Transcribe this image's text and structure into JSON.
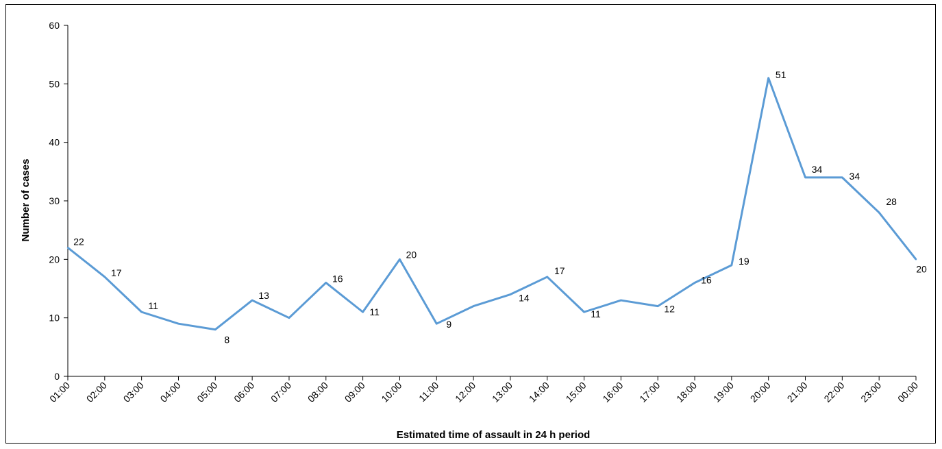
{
  "chart_data": {
    "type": "line",
    "title": "",
    "xlabel": "Estimated time of assault in 24 h period",
    "ylabel": "Number of cases",
    "ylim": [
      0,
      60
    ],
    "yticks": [
      0,
      10,
      20,
      30,
      40,
      50,
      60
    ],
    "grid": false,
    "legend": "none",
    "categories": [
      "01:00",
      "02:00",
      "03:00",
      "04:00",
      "05:00",
      "06:00",
      "07:00",
      "08:00",
      "09:00",
      "10:00",
      "11:00",
      "12:00",
      "13:00",
      "14:00",
      "15:00",
      "16:00",
      "17:00",
      "18:00",
      "19:00",
      "20:00",
      "21:00",
      "22:00",
      "23:00",
      "00:00"
    ],
    "series": [
      {
        "values": [
          22,
          17,
          11,
          9,
          8,
          13,
          10,
          16,
          11,
          20,
          9,
          12,
          14,
          17,
          11,
          13,
          12,
          16,
          19,
          51,
          34,
          34,
          28,
          20
        ],
        "data_labels": [
          "22",
          "17",
          "11",
          "",
          "8",
          "13",
          "",
          "16",
          "11",
          "20",
          "9",
          "",
          "14",
          "17",
          "11",
          "",
          "12",
          "16",
          "19",
          "51",
          "34",
          "34",
          "28",
          "20"
        ],
        "color": "#5b9bd5"
      }
    ]
  }
}
